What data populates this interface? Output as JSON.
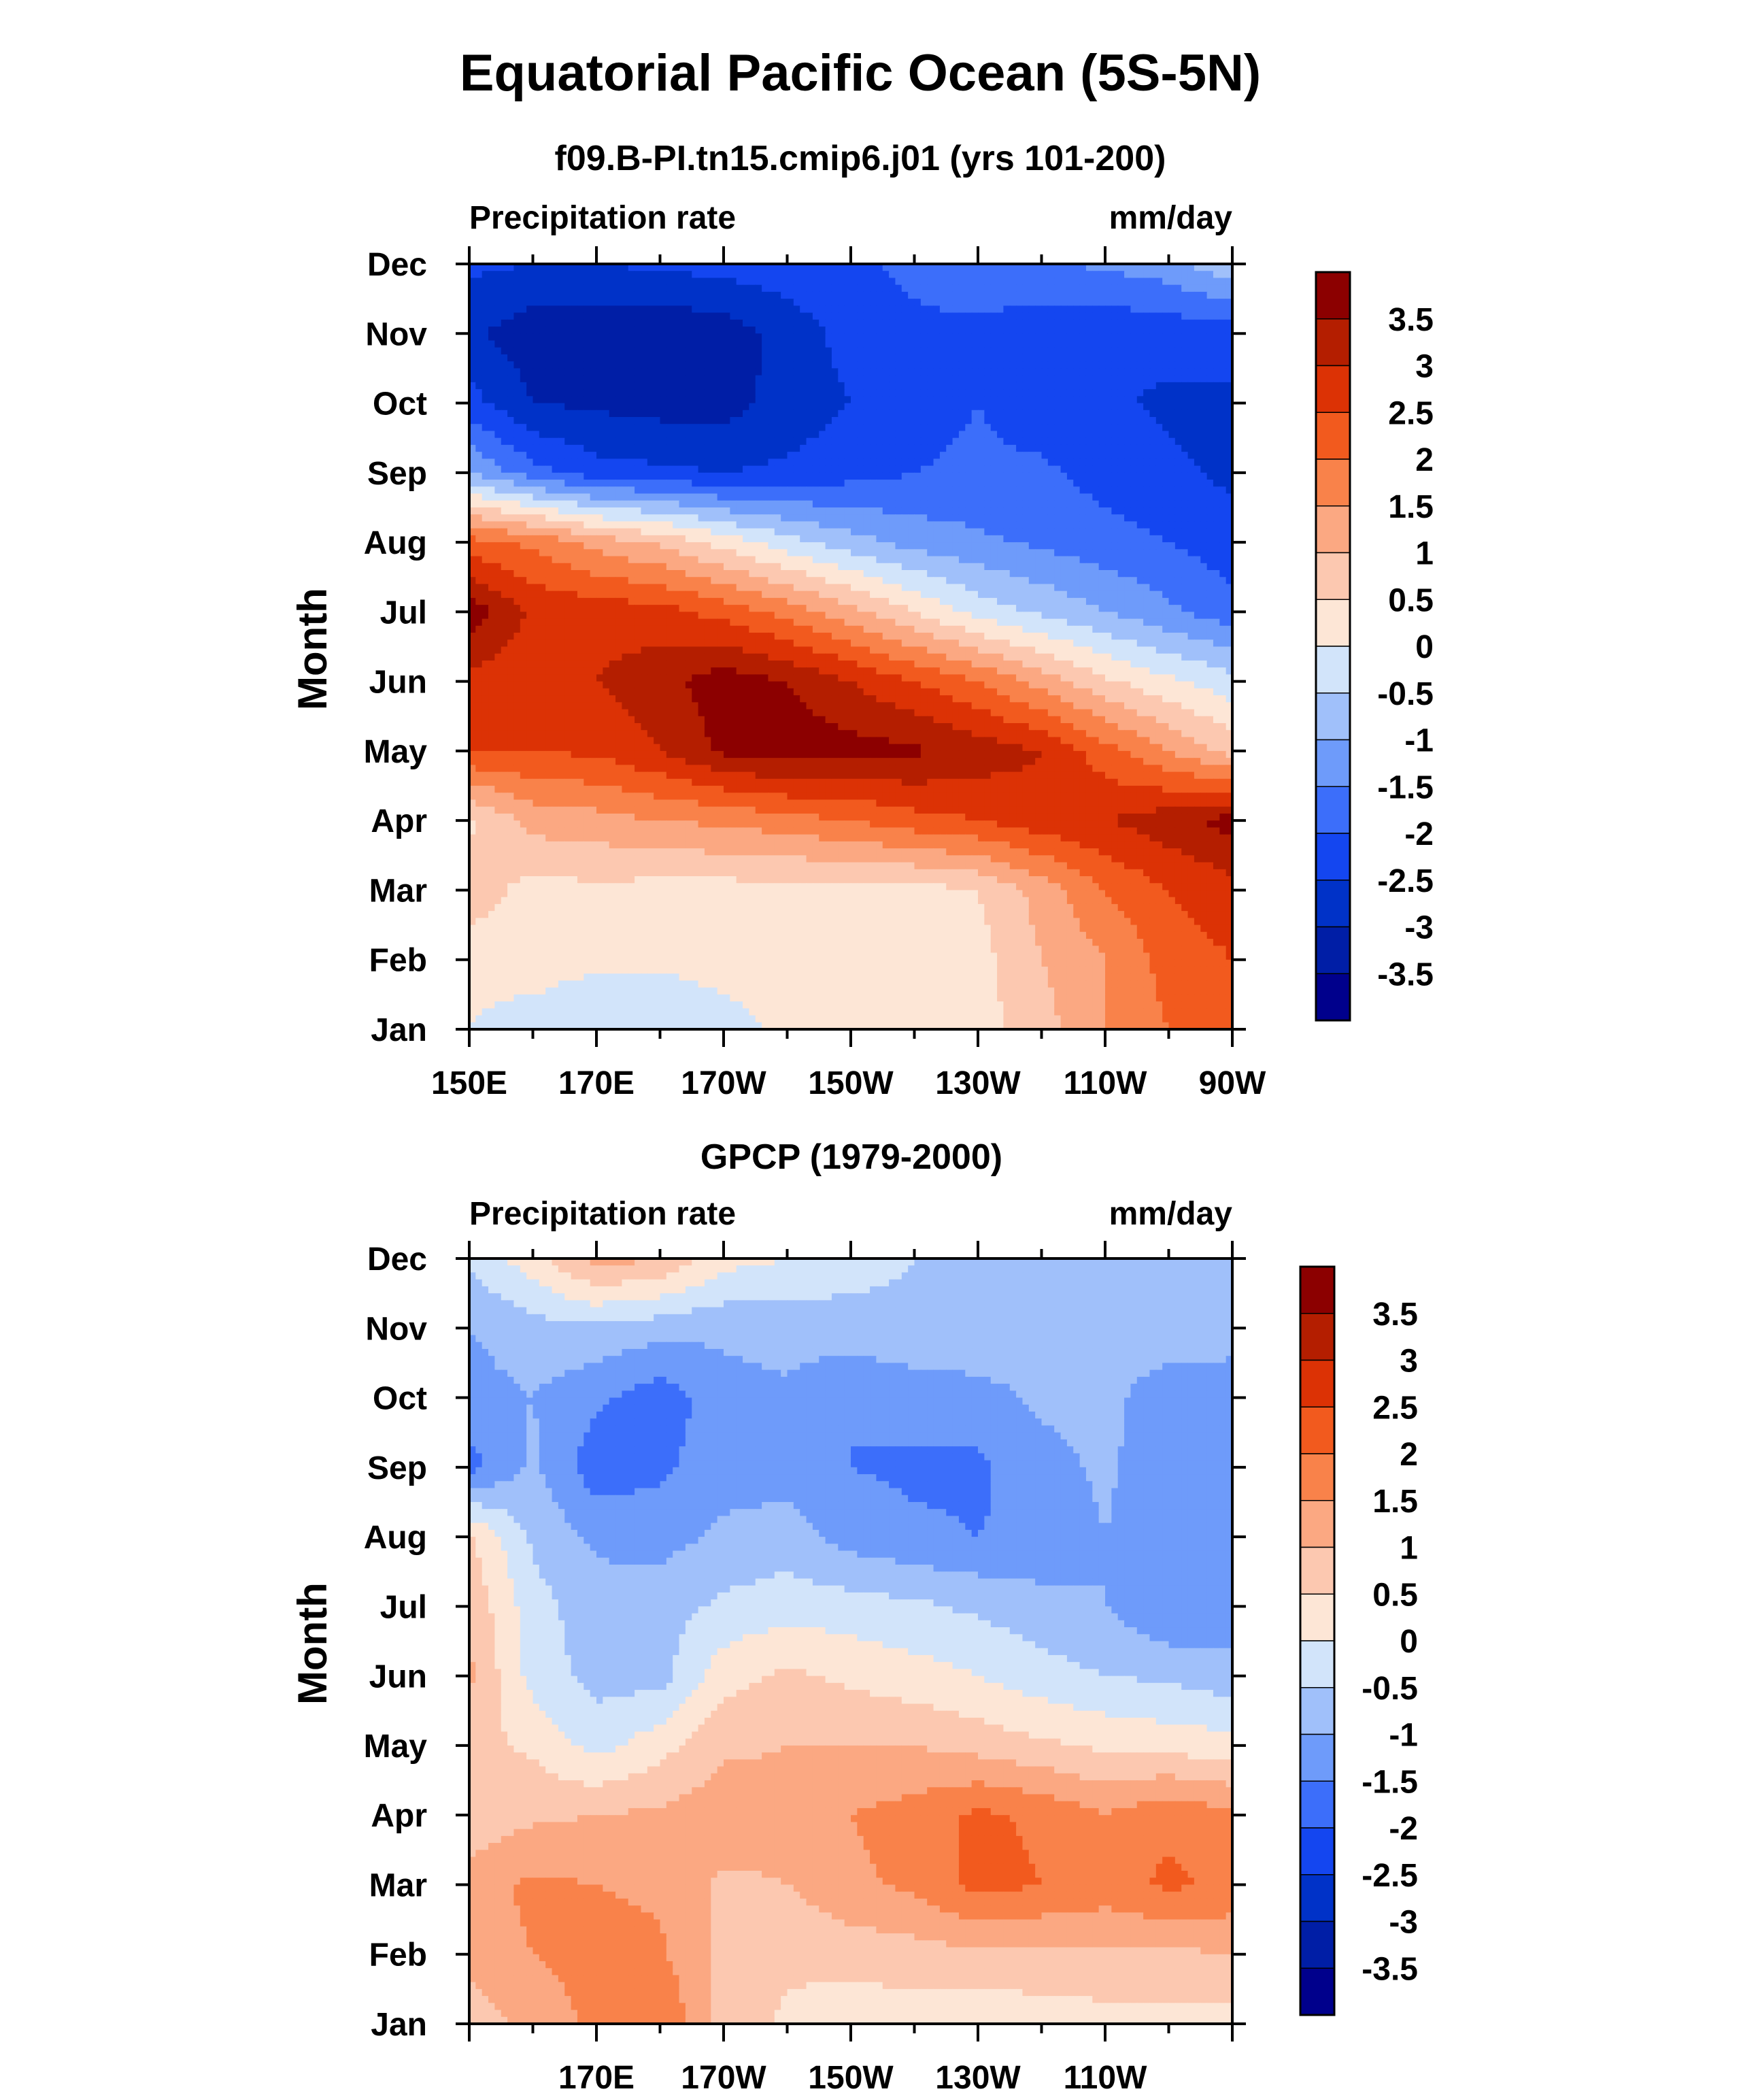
{
  "title": "Equatorial Pacific Ocean (5S-5N)",
  "colormap": {
    "levels": [
      -3.5,
      -3,
      -2.5,
      -2,
      -1.5,
      -1,
      -0.5,
      0,
      0.5,
      1,
      1.5,
      2,
      2.5,
      3,
      3.5
    ],
    "level_labels": [
      "3.5",
      "3",
      "2.5",
      "2",
      "1.5",
      "1",
      "0.5",
      "0",
      "-0.5",
      "-1",
      "-1.5",
      "-2",
      "-2.5",
      "-3",
      "-3.5"
    ],
    "colors": [
      "#00008c",
      "#001ea6",
      "#0032c8",
      "#1446f0",
      "#3c6efa",
      "#6e9bfa",
      "#a0c0fa",
      "#d2e4fa",
      "#fde6d6",
      "#fcc8b0",
      "#fba882",
      "#f9824a",
      "#f25a1e",
      "#dc3205",
      "#b41e00",
      "#8c0000"
    ]
  },
  "chart_data": [
    {
      "type": "heatmap",
      "name": "model",
      "subtitle": "f09.B-PI.tn15.cmip6.j01 (yrs 101-200)",
      "left_label": "Precipitation rate",
      "right_label": "mm/day",
      "ylabel": "Month",
      "y_ticks": [
        "Jan",
        "Feb",
        "Mar",
        "Apr",
        "May",
        "Jun",
        "Jul",
        "Aug",
        "Sep",
        "Oct",
        "Nov",
        "Dec"
      ],
      "x_ticks": [
        "150E",
        "170E",
        "170W",
        "150W",
        "130W",
        "110W",
        "90W"
      ],
      "x_tick_lons": [
        150,
        170,
        190,
        210,
        230,
        250,
        270
      ],
      "xlim": [
        150,
        270
      ],
      "units": "mm/day",
      "lons": [
        150,
        160,
        170,
        180,
        190,
        200,
        210,
        220,
        230,
        240,
        250,
        260,
        270
      ],
      "values": [
        [
          0.0,
          -0.3,
          -0.5,
          -0.5,
          -0.2,
          0.1,
          0.2,
          0.2,
          0.3,
          0.8,
          1.5,
          2.0,
          2.3
        ],
        [
          0.2,
          0.3,
          0.1,
          0.1,
          0.2,
          0.3,
          0.3,
          0.3,
          0.3,
          1.0,
          1.5,
          2.2,
          2.5
        ],
        [
          0.8,
          0.3,
          0.4,
          0.3,
          0.3,
          0.3,
          0.3,
          0.3,
          0.5,
          1.2,
          2.0,
          2.5,
          2.8
        ],
        [
          0.4,
          1.2,
          1.3,
          1.5,
          1.6,
          1.8,
          2.0,
          2.3,
          2.5,
          2.8,
          3.0,
          3.3,
          3.7
        ],
        [
          2.5,
          2.5,
          2.6,
          3.0,
          3.6,
          3.8,
          3.7,
          3.6,
          3.3,
          3.0,
          2.2,
          1.5,
          0.8
        ],
        [
          2.8,
          2.7,
          3.0,
          3.3,
          3.8,
          3.5,
          3.0,
          2.5,
          2.0,
          1.3,
          0.6,
          0.1,
          -0.3
        ],
        [
          3.8,
          2.9,
          2.8,
          2.7,
          2.3,
          1.8,
          1.2,
          0.5,
          -0.2,
          -0.6,
          -1.0,
          -1.4,
          -1.8
        ],
        [
          2.2,
          1.9,
          1.3,
          0.9,
          0.3,
          -0.3,
          -0.8,
          -1.2,
          -1.4,
          -1.6,
          -1.8,
          -2.0,
          -2.3
        ],
        [
          -1.0,
          -1.8,
          -2.3,
          -2.4,
          -2.5,
          -2.4,
          -2.2,
          -2.0,
          -1.9,
          -1.9,
          -2.2,
          -2.4,
          -2.6
        ],
        [
          -2.3,
          -3.0,
          -3.1,
          -3.2,
          -3.2,
          -2.8,
          -2.5,
          -2.2,
          -2.0,
          -2.3,
          -2.4,
          -2.6,
          -2.6
        ],
        [
          -2.9,
          -3.3,
          -3.4,
          -3.4,
          -3.3,
          -2.8,
          -2.3,
          -2.1,
          -2.1,
          -2.3,
          -2.4,
          -2.3,
          -2.3
        ],
        [
          -2.4,
          -2.5,
          -2.5,
          -2.4,
          -2.3,
          -2.2,
          -2.1,
          -1.9,
          -1.7,
          -1.6,
          -1.4,
          -1.2,
          -0.6
        ]
      ]
    },
    {
      "type": "heatmap",
      "name": "obs",
      "subtitle": "GPCP (1979-2000)",
      "left_label": "Precipitation rate",
      "right_label": "mm/day",
      "ylabel": "Month",
      "y_ticks": [
        "Jan",
        "Feb",
        "Mar",
        "Apr",
        "May",
        "Jun",
        "Jul",
        "Aug",
        "Sep",
        "Oct",
        "Nov",
        "Dec"
      ],
      "x_ticks": [
        "170E",
        "170W",
        "150W",
        "130W",
        "110W"
      ],
      "x_tick_lons": [
        170,
        190,
        210,
        230,
        250
      ],
      "xlim": [
        150,
        270
      ],
      "units": "mm/day",
      "lons": [
        150,
        160,
        170,
        180,
        190,
        200,
        210,
        220,
        230,
        240,
        250,
        260,
        270
      ],
      "values": [
        [
          0.7,
          1.2,
          1.6,
          2.0,
          0.8,
          0.4,
          0.2,
          0.2,
          0.1,
          0.2,
          0.3,
          0.3,
          0.3
        ],
        [
          1.2,
          1.5,
          1.7,
          1.6,
          0.8,
          0.6,
          0.7,
          0.8,
          0.9,
          0.9,
          0.9,
          0.9,
          1.0
        ],
        [
          1.3,
          1.6,
          1.5,
          1.4,
          0.9,
          1.0,
          1.4,
          1.6,
          2.2,
          2.0,
          1.8,
          2.1,
          1.9
        ],
        [
          0.6,
          0.9,
          1.0,
          1.1,
          1.3,
          1.2,
          1.5,
          1.7,
          2.1,
          1.9,
          1.5,
          1.9,
          1.6
        ],
        [
          0.7,
          0.4,
          -0.2,
          0.3,
          0.9,
          1.0,
          1.0,
          1.0,
          0.8,
          0.6,
          0.4,
          0.3,
          0.2
        ],
        [
          1.1,
          -0.2,
          -0.7,
          -0.7,
          0.3,
          0.6,
          0.4,
          0.2,
          0.0,
          -0.3,
          -0.5,
          -0.6,
          -0.8
        ],
        [
          0.9,
          -0.3,
          -0.8,
          -0.7,
          -0.4,
          -0.2,
          -0.3,
          -0.4,
          -0.6,
          -0.8,
          -1.0,
          -1.5,
          -1.3
        ],
        [
          0.6,
          -0.6,
          -1.1,
          -1.2,
          -0.9,
          -0.8,
          -1.2,
          -1.4,
          -1.5,
          -1.4,
          -1.0,
          -1.5,
          -1.2
        ],
        [
          -1.7,
          -0.9,
          -1.8,
          -1.6,
          -1.2,
          -1.2,
          -1.5,
          -1.6,
          -1.6,
          -1.2,
          -0.9,
          -1.4,
          -1.4
        ],
        [
          -1.2,
          -1.0,
          -1.4,
          -1.8,
          -1.2,
          -1.1,
          -1.5,
          -1.3,
          -1.2,
          -0.9,
          -0.8,
          -1.4,
          -1.5
        ],
        [
          -1.0,
          -0.7,
          -0.6,
          -0.8,
          -0.9,
          -0.8,
          -0.7,
          -0.6,
          -0.6,
          -0.7,
          -0.7,
          -0.6,
          -0.6
        ],
        [
          -0.4,
          0.3,
          1.2,
          1.0,
          0.2,
          0.0,
          -0.3,
          -0.5,
          -0.6,
          -0.6,
          -0.6,
          -0.6,
          -0.6
        ]
      ]
    }
  ]
}
